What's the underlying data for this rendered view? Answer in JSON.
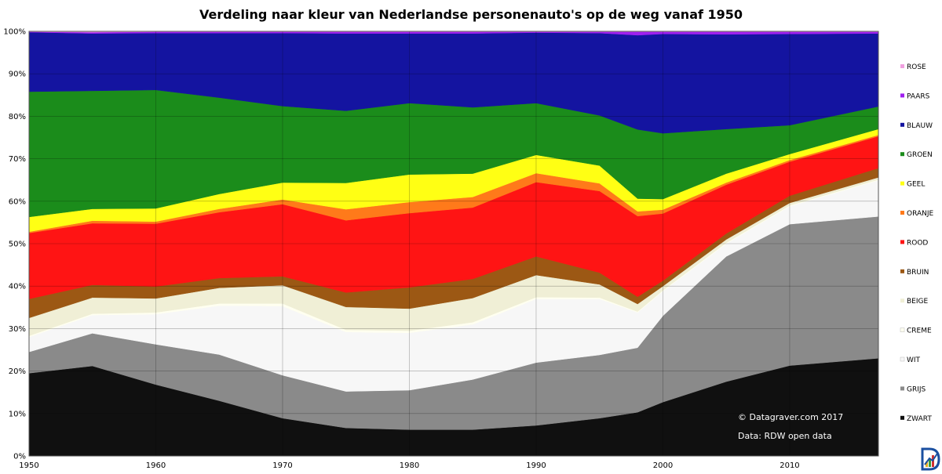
{
  "chart_data": {
    "type": "area",
    "stacked": true,
    "normalized_percent": true,
    "title": "Verdeling naar kleur van Nederlandse personenauto's op de weg vanaf 1950",
    "xlabel": "",
    "ylabel": "",
    "xlim": [
      1950,
      2017
    ],
    "ylim": [
      0,
      100
    ],
    "x_ticks": [
      "1950",
      "1960",
      "1970",
      "1980",
      "1990",
      "2000",
      "2010"
    ],
    "y_ticks": [
      "0%",
      "10%",
      "20%",
      "30%",
      "40%",
      "50%",
      "60%",
      "70%",
      "80%",
      "90%",
      "100%"
    ],
    "grid": true,
    "legend_position": "right",
    "annotations": [
      "© Datagraver.com 2017",
      "Data: RDW open data"
    ],
    "x": [
      1950,
      1955,
      1960,
      1965,
      1970,
      1975,
      1980,
      1985,
      1990,
      1995,
      1998,
      2000,
      2005,
      2010,
      2017
    ],
    "series": [
      {
        "name": "ZWART",
        "color": "#101010",
        "values": [
          19.5,
          21.2,
          16.8,
          13.0,
          8.9,
          6.6,
          6.2,
          6.2,
          7.2,
          8.9,
          10.3,
          12.7,
          17.5,
          21.3,
          23.0
        ]
      },
      {
        "name": "GRIJS",
        "color": "#8a8a8a",
        "values": [
          5.0,
          7.7,
          9.5,
          10.9,
          10.1,
          8.6,
          9.3,
          11.8,
          14.8,
          14.9,
          15.2,
          20.3,
          29.5,
          33.3,
          33.4
        ]
      },
      {
        "name": "WIT",
        "color": "#f7f7f7",
        "values": [
          3.5,
          4.3,
          7.1,
          11.5,
          16.3,
          14.0,
          13.5,
          13.0,
          15.0,
          13.2,
          8.3,
          5.8,
          3.0,
          4.2,
          8.5
        ]
      },
      {
        "name": "CREME",
        "color": "#fffff0",
        "values": [
          0.3,
          0.3,
          0.4,
          0.5,
          0.6,
          0.5,
          0.5,
          0.5,
          0.4,
          0.3,
          0.2,
          0.2,
          0.2,
          0.2,
          0.2
        ]
      },
      {
        "name": "BEIGE",
        "color": "#f0efd6",
        "values": [
          4.2,
          3.8,
          3.3,
          3.7,
          4.3,
          5.4,
          5.2,
          5.7,
          5.2,
          3.1,
          1.8,
          1.0,
          0.8,
          0.6,
          0.5
        ]
      },
      {
        "name": "BRUIN",
        "color": "#9c5814",
        "values": [
          4.5,
          3.0,
          2.8,
          2.3,
          2.1,
          3.4,
          5.0,
          4.5,
          4.4,
          2.8,
          1.7,
          1.3,
          1.4,
          1.7,
          2.2
        ]
      },
      {
        "name": "ROOD",
        "color": "#ff1414",
        "values": [
          15.5,
          14.5,
          14.8,
          15.5,
          17.0,
          17.0,
          17.5,
          16.8,
          17.5,
          19.2,
          19.0,
          15.8,
          11.5,
          8.0,
          7.5
        ]
      },
      {
        "name": "ORANJE",
        "color": "#ff7a1a",
        "values": [
          0.3,
          0.6,
          0.5,
          0.8,
          1.1,
          2.6,
          2.6,
          2.5,
          2.1,
          1.8,
          1.1,
          0.9,
          0.5,
          0.4,
          0.3
        ]
      },
      {
        "name": "GEEL",
        "color": "#ffff14",
        "values": [
          3.5,
          2.8,
          3.1,
          3.5,
          4.0,
          6.2,
          6.5,
          5.5,
          4.3,
          4.2,
          3.0,
          2.5,
          2.1,
          1.4,
          1.4
        ]
      },
      {
        "name": "GROEN",
        "color": "#1b8c1b",
        "values": [
          29.5,
          27.8,
          27.9,
          22.7,
          18.0,
          17.0,
          16.8,
          15.6,
          12.2,
          11.8,
          16.3,
          15.5,
          10.5,
          6.8,
          5.3
        ]
      },
      {
        "name": "BLAUW",
        "color": "#1414a0",
        "values": [
          14.0,
          13.5,
          13.4,
          15.2,
          17.2,
          18.2,
          16.4,
          17.4,
          16.6,
          19.4,
          22.2,
          23.4,
          22.3,
          21.5,
          17.2
        ]
      },
      {
        "name": "PAARS",
        "color": "#a020f0",
        "values": [
          0.1,
          0.3,
          0.3,
          0.3,
          0.3,
          0.4,
          0.4,
          0.4,
          0.2,
          0.3,
          0.8,
          0.5,
          0.6,
          0.5,
          0.4
        ]
      },
      {
        "name": "ROSE",
        "color": "#f0a0e0",
        "values": [
          0.1,
          0.2,
          0.1,
          0.1,
          0.1,
          0.1,
          0.1,
          0.1,
          0.1,
          0.1,
          0.1,
          0.1,
          0.1,
          0.1,
          0.1
        ]
      }
    ]
  }
}
